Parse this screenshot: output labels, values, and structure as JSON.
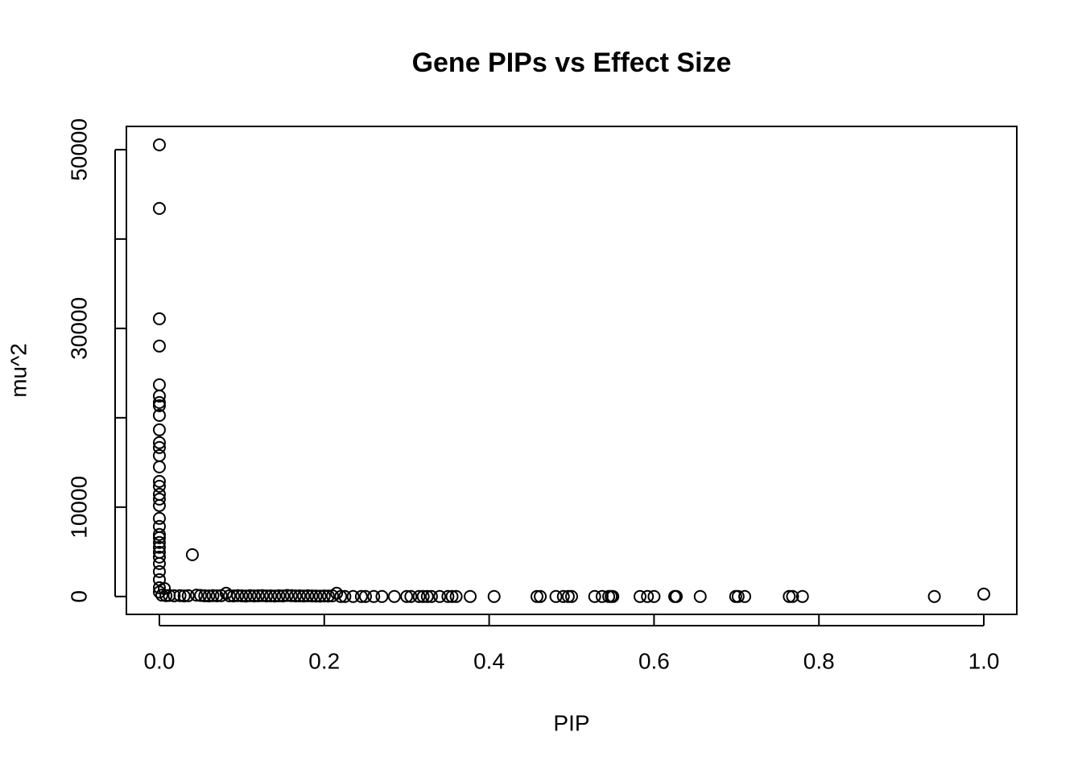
{
  "chart_data": {
    "type": "scatter",
    "title": "Gene PIPs vs Effect Size",
    "x_label": "PIP",
    "y_label": "mu^2",
    "color": "#000000",
    "x": [
      0,
      0,
      0,
      0,
      0,
      0,
      0,
      0,
      0,
      0,
      0,
      0,
      0,
      0,
      0,
      0,
      0,
      0,
      0,
      0,
      0,
      0,
      0,
      0,
      0,
      0,
      0,
      0,
      0,
      0,
      0,
      0,
      0.04,
      0.006,
      0.081,
      0.215,
      1,
      0.94,
      0.003,
      0.008,
      0.012,
      0.018,
      0.025,
      0.03,
      0.035,
      0.045,
      0.05,
      0.055,
      0.06,
      0.065,
      0.07,
      0.075,
      0.085,
      0.09,
      0.095,
      0.1,
      0.105,
      0.11,
      0.115,
      0.12,
      0.125,
      0.13,
      0.135,
      0.14,
      0.145,
      0.15,
      0.155,
      0.16,
      0.165,
      0.17,
      0.175,
      0.18,
      0.185,
      0.19,
      0.195,
      0.2,
      0.205,
      0.21,
      0.22,
      0.225,
      0.235,
      0.245,
      0.25,
      0.26,
      0.27,
      0.285,
      0.3,
      0.305,
      0.315,
      0.32,
      0.325,
      0.33,
      0.34,
      0.35,
      0.355,
      0.36,
      0.377,
      0.406,
      0.458,
      0.462,
      0.481,
      0.49,
      0.496,
      0.5,
      0.528,
      0.537,
      0.545,
      0.548,
      0.55,
      0.583,
      0.592,
      0.6,
      0.625,
      0.627,
      0.656,
      0.699,
      0.702,
      0.71,
      0.764,
      0.768,
      0.78
    ],
    "values": [
      50540,
      43420,
      31080,
      28020,
      23690,
      22430,
      21710,
      21350,
      20270,
      18650,
      17210,
      16670,
      15770,
      14500,
      12880,
      12340,
      11440,
      10900,
      10180,
      8740,
      7840,
      6940,
      6580,
      6040,
      5500,
      4950,
      4410,
      3690,
      2790,
      1890,
      990,
      500,
      4680,
      900,
      360,
      360,
      270,
      0,
      150,
      100,
      120,
      80,
      100,
      60,
      90,
      150,
      120,
      80,
      60,
      100,
      70,
      90,
      80,
      60,
      100,
      70,
      50,
      90,
      60,
      80,
      100,
      60,
      70,
      50,
      80,
      60,
      120,
      90,
      60,
      70,
      50,
      80,
      60,
      50,
      40,
      60,
      50,
      70,
      0,
      0,
      0,
      0,
      0,
      0,
      0,
      0,
      0,
      0,
      0,
      0,
      0,
      0,
      0,
      0,
      0,
      0,
      0,
      0,
      0,
      0,
      0,
      0,
      0,
      0,
      0,
      0,
      0,
      0,
      0,
      0,
      0,
      0,
      0,
      0,
      0,
      0,
      0,
      0,
      0,
      0,
      0
    ],
    "xlim": [
      -0.04,
      1.04
    ],
    "ylim": [
      -2000,
      52600
    ],
    "xticks": [
      {
        "value": 0,
        "label": "0.0"
      },
      0.2,
      0.4,
      0.6,
      0.8,
      {
        "value": 1,
        "label": "1.0"
      }
    ],
    "yticks": [
      0,
      10000,
      {
        "value": 20000,
        "label": null
      },
      30000,
      {
        "value": 40000,
        "label": null
      },
      50000
    ]
  }
}
